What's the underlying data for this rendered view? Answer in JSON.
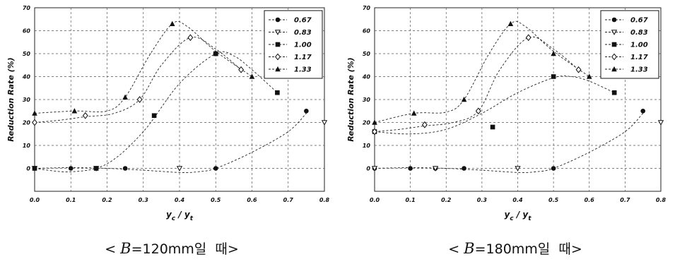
{
  "chart_data": [
    {
      "type": "scatter",
      "caption": {
        "prefix": "< ",
        "variable": "B",
        "suffix": "=120mm일  때>"
      },
      "ylabel": "Reduction Rate (%)",
      "xlabel": {
        "main": "y",
        "sub1": "c",
        "sep": " / ",
        "main2": "y",
        "sub2": "t"
      },
      "xlim": [
        0,
        0.8
      ],
      "ylim": [
        -10,
        70
      ],
      "xticks": [
        "0.0",
        "0.1",
        "0.2",
        "0.3",
        "0.4",
        "0.5",
        "0.6",
        "0.7",
        "0.8"
      ],
      "yticks": [
        "0",
        "10",
        "20",
        "30",
        "40",
        "50",
        "60",
        "70"
      ],
      "grid": true,
      "legend_position": "top-right",
      "series": [
        {
          "name": "0.67",
          "marker": "circle",
          "points": [
            [
              0.0,
              0
            ],
            [
              0.1,
              0
            ],
            [
              0.17,
              0
            ],
            [
              0.25,
              0
            ],
            [
              0.5,
              0
            ],
            [
              0.75,
              25
            ]
          ],
          "curve": [
            [
              0.0,
              0
            ],
            [
              0.1,
              0.3
            ],
            [
              0.2,
              0
            ],
            [
              0.3,
              -0.8
            ],
            [
              0.4,
              -1.8
            ],
            [
              0.45,
              -1.5
            ],
            [
              0.5,
              0
            ],
            [
              0.6,
              7
            ],
            [
              0.7,
              16
            ],
            [
              0.75,
              24
            ]
          ]
        },
        {
          "name": "0.83",
          "marker": "triangle-down-open",
          "points": [
            [
              0.0,
              0
            ],
            [
              0.17,
              0
            ],
            [
              0.4,
              0
            ],
            [
              0.8,
              20
            ]
          ],
          "curve": []
        },
        {
          "name": "1.00",
          "marker": "square",
          "points": [
            [
              0.0,
              0
            ],
            [
              0.17,
              0
            ],
            [
              0.33,
              23
            ],
            [
              0.5,
              50
            ],
            [
              0.67,
              33
            ]
          ],
          "curve": [
            [
              0.0,
              0
            ],
            [
              0.1,
              -1.5
            ],
            [
              0.2,
              2
            ],
            [
              0.3,
              16
            ],
            [
              0.4,
              37
            ],
            [
              0.5,
              50
            ],
            [
              0.55,
              49
            ],
            [
              0.6,
              43
            ],
            [
              0.67,
              33
            ]
          ]
        },
        {
          "name": "1.17",
          "marker": "diamond-open",
          "points": [
            [
              0.0,
              20
            ],
            [
              0.14,
              23
            ],
            [
              0.29,
              30
            ],
            [
              0.43,
              57
            ],
            [
              0.57,
              43
            ]
          ],
          "curve": [
            [
              0.0,
              20
            ],
            [
              0.07,
              21
            ],
            [
              0.14,
              22.5
            ],
            [
              0.22,
              24
            ],
            [
              0.29,
              30
            ],
            [
              0.35,
              45
            ],
            [
              0.43,
              57
            ],
            [
              0.5,
              52
            ],
            [
              0.57,
              43
            ]
          ]
        },
        {
          "name": "1.33",
          "marker": "triangle",
          "points": [
            [
              0.0,
              24
            ],
            [
              0.11,
              25
            ],
            [
              0.25,
              31
            ],
            [
              0.38,
              63
            ],
            [
              0.5,
              50
            ],
            [
              0.6,
              40
            ]
          ],
          "curve": [
            [
              0.0,
              24
            ],
            [
              0.11,
              25
            ],
            [
              0.2,
              25
            ],
            [
              0.25,
              31
            ],
            [
              0.32,
              50
            ],
            [
              0.38,
              63
            ],
            [
              0.42,
              62
            ],
            [
              0.5,
              51
            ],
            [
              0.6,
              40
            ]
          ]
        }
      ]
    },
    {
      "type": "scatter",
      "caption": {
        "prefix": "< ",
        "variable": "B",
        "suffix": "=180mm일  때>"
      },
      "ylabel": "Reduction Rate (%)",
      "xlabel": {
        "main": "y",
        "sub1": "c",
        "sep": " / ",
        "main2": "y",
        "sub2": "t"
      },
      "xlim": [
        0,
        0.8
      ],
      "ylim": [
        -10,
        70
      ],
      "xticks": [
        "0.0",
        "0.1",
        "0.2",
        "0.3",
        "0.4",
        "0.5",
        "0.6",
        "0.7",
        "0.8"
      ],
      "yticks": [
        "0",
        "10",
        "20",
        "30",
        "40",
        "50",
        "60",
        "70"
      ],
      "grid": true,
      "legend_position": "top-right",
      "series": [
        {
          "name": "0.67",
          "marker": "circle",
          "points": [
            [
              0.0,
              0
            ],
            [
              0.1,
              0
            ],
            [
              0.17,
              0
            ],
            [
              0.25,
              0
            ],
            [
              0.5,
              0
            ],
            [
              0.75,
              25
            ]
          ],
          "curve": [
            [
              0.0,
              0
            ],
            [
              0.1,
              0.3
            ],
            [
              0.2,
              0
            ],
            [
              0.3,
              -0.8
            ],
            [
              0.4,
              -1.8
            ],
            [
              0.45,
              -1.5
            ],
            [
              0.5,
              0
            ],
            [
              0.6,
              7
            ],
            [
              0.7,
              16
            ],
            [
              0.75,
              24
            ]
          ]
        },
        {
          "name": "0.83",
          "marker": "triangle-down-open",
          "points": [
            [
              0.0,
              0
            ],
            [
              0.17,
              0
            ],
            [
              0.4,
              0
            ],
            [
              0.8,
              20
            ]
          ],
          "curve": []
        },
        {
          "name": "1.00",
          "marker": "square",
          "points": [
            [
              0.0,
              16
            ],
            [
              0.33,
              18
            ],
            [
              0.5,
              40
            ],
            [
              0.67,
              33
            ]
          ],
          "curve": [
            [
              0.0,
              16
            ],
            [
              0.1,
              15
            ],
            [
              0.2,
              17
            ],
            [
              0.3,
              24
            ],
            [
              0.4,
              33
            ],
            [
              0.5,
              39.5
            ],
            [
              0.55,
              40
            ],
            [
              0.6,
              38
            ],
            [
              0.67,
              33
            ]
          ]
        },
        {
          "name": "1.17",
          "marker": "diamond-open",
          "points": [
            [
              0.0,
              16
            ],
            [
              0.14,
              19
            ],
            [
              0.29,
              25
            ],
            [
              0.43,
              57
            ],
            [
              0.57,
              43
            ]
          ],
          "curve": [
            [
              0.0,
              16
            ],
            [
              0.07,
              17
            ],
            [
              0.14,
              18.5
            ],
            [
              0.22,
              20
            ],
            [
              0.29,
              25
            ],
            [
              0.35,
              43
            ],
            [
              0.43,
              57
            ],
            [
              0.5,
              52
            ],
            [
              0.57,
              43
            ]
          ]
        },
        {
          "name": "1.33",
          "marker": "triangle",
          "points": [
            [
              0.0,
              20
            ],
            [
              0.11,
              24
            ],
            [
              0.25,
              30
            ],
            [
              0.38,
              63
            ],
            [
              0.5,
              50
            ],
            [
              0.6,
              40
            ]
          ],
          "curve": [
            [
              0.0,
              20
            ],
            [
              0.11,
              24
            ],
            [
              0.2,
              24.5
            ],
            [
              0.25,
              30
            ],
            [
              0.32,
              50
            ],
            [
              0.38,
              63
            ],
            [
              0.42,
              62
            ],
            [
              0.5,
              51
            ],
            [
              0.6,
              40
            ]
          ]
        }
      ]
    }
  ]
}
